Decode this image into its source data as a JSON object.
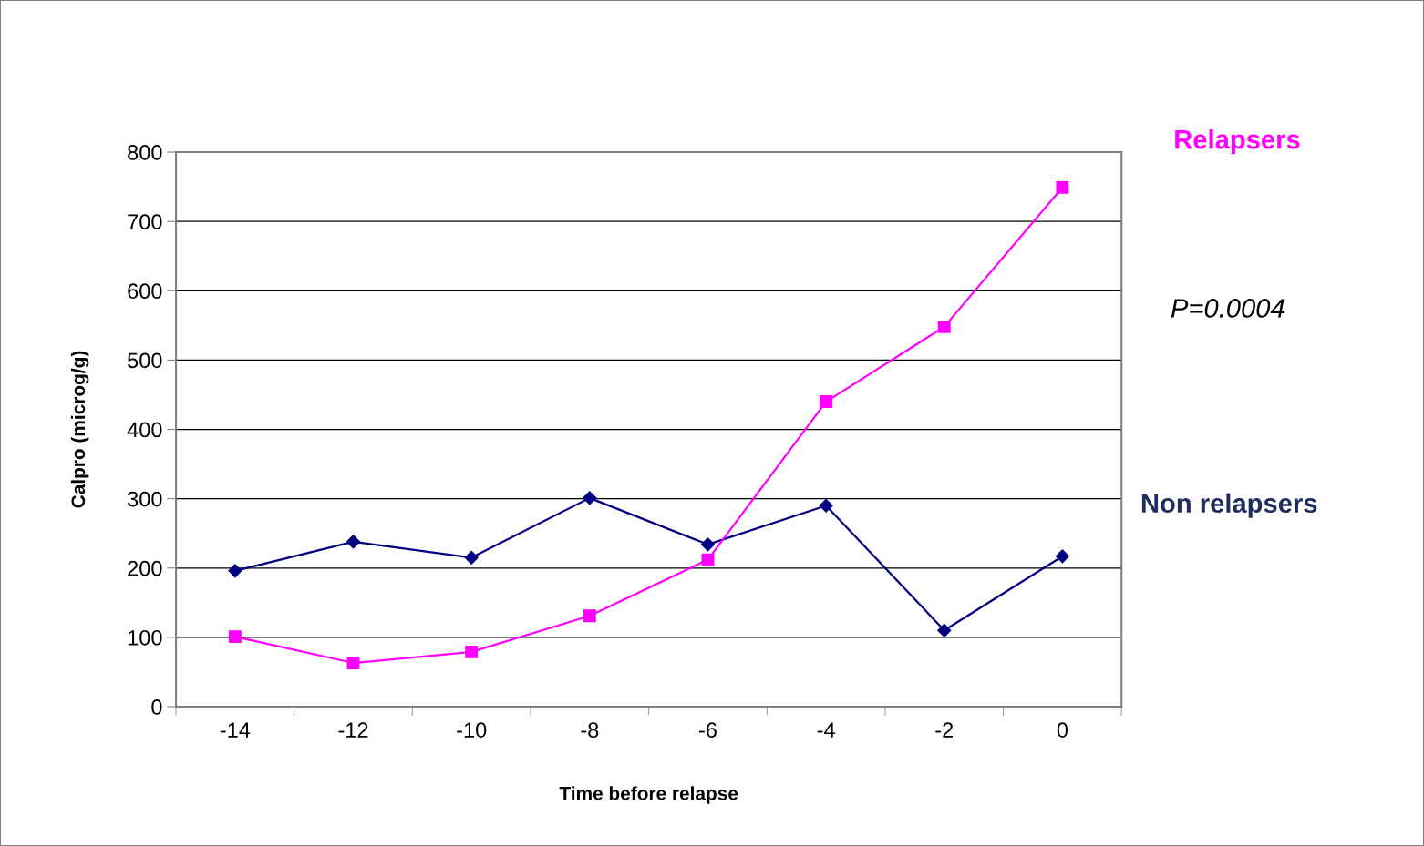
{
  "chart_data": {
    "type": "line",
    "xlabel": "Time before relapse",
    "ylabel": "Calpro (microg/g)",
    "categories": [
      "-14",
      "-12",
      "-10",
      "-8",
      "-6",
      "-4",
      "-2",
      "0"
    ],
    "series": [
      {
        "name": "Non relapsers",
        "color": "#000080",
        "marker": "diamond",
        "values": [
          196,
          238,
          215,
          301,
          234,
          290,
          110,
          217
        ]
      },
      {
        "name": "Relapsers",
        "color": "#ff00ff",
        "marker": "square",
        "values": [
          101,
          63,
          79,
          131,
          212,
          440,
          548,
          749
        ]
      }
    ],
    "ylim": [
      0,
      800
    ],
    "yticks": [
      0,
      100,
      200,
      300,
      400,
      500,
      600,
      700,
      800
    ],
    "grid": "y",
    "legend": false,
    "line_style": "solid",
    "annotations": [
      "P=0.0004"
    ]
  }
}
